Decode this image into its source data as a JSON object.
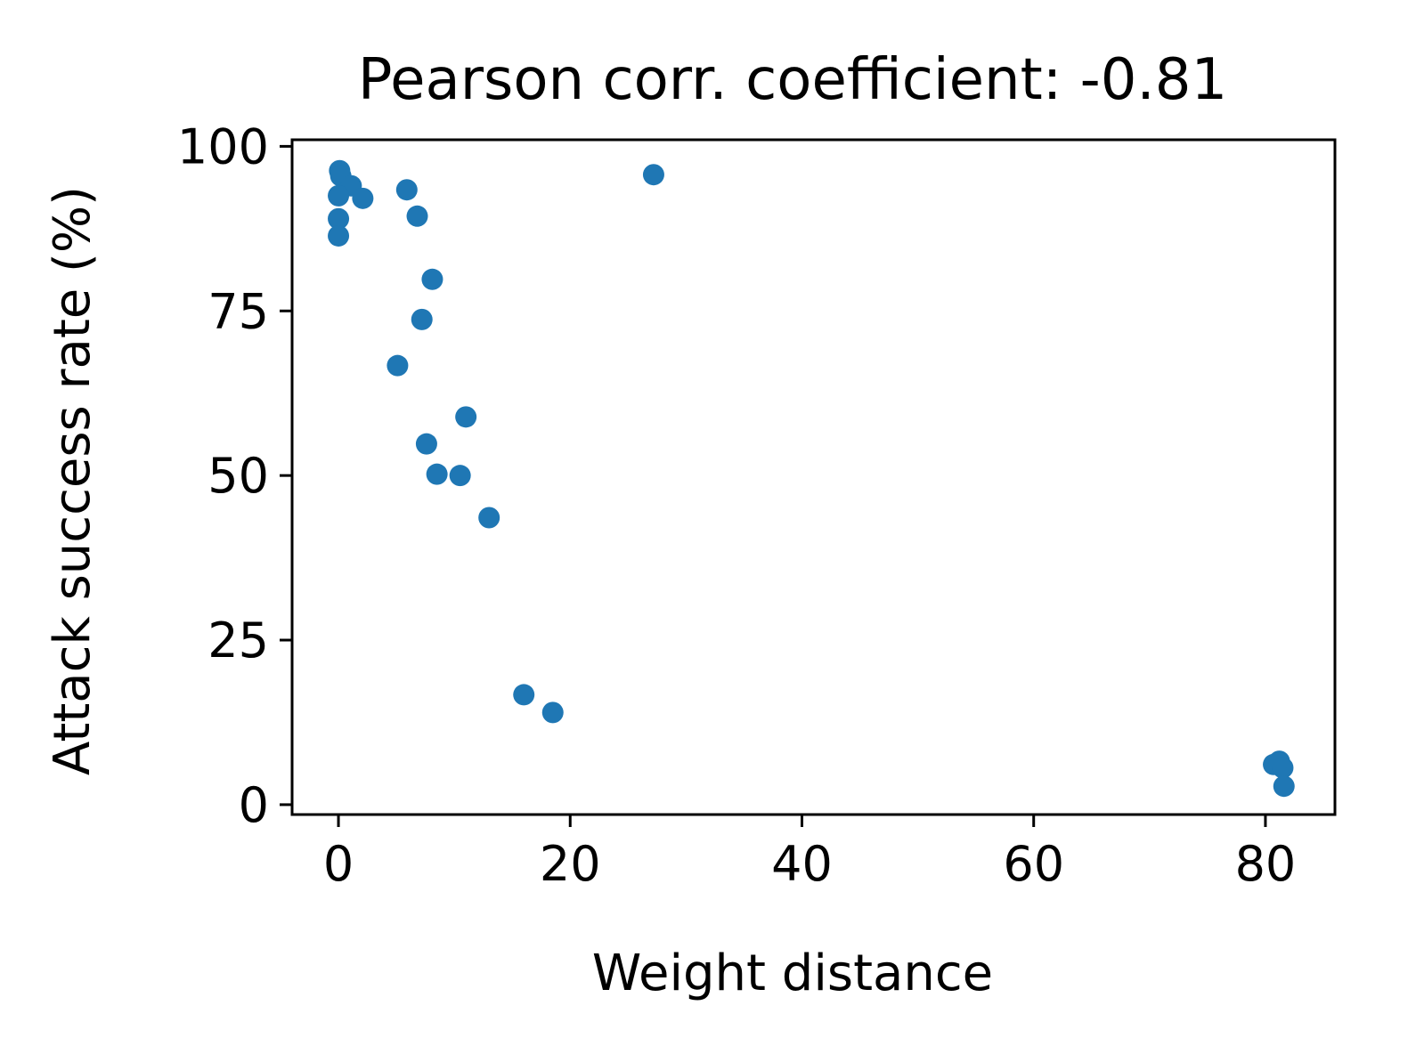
{
  "chart_data": {
    "type": "scatter",
    "title": "Pearson corr. coefficient: -0.81",
    "xlabel": "Weight distance",
    "ylabel": "Attack success rate (%)",
    "xlim": [
      -4,
      86
    ],
    "ylim": [
      -1.5,
      101
    ],
    "xticks": [
      0,
      20,
      40,
      60,
      80
    ],
    "yticks": [
      0,
      25,
      50,
      75,
      100
    ],
    "grid": false,
    "legend": "none",
    "marker_color": "#1f77b4",
    "series": [
      {
        "points": [
          {
            "x": 0.1,
            "y": 96.3
          },
          {
            "x": 0.2,
            "y": 95.5
          },
          {
            "x": 1.1,
            "y": 94.0
          },
          {
            "x": 0.0,
            "y": 92.5
          },
          {
            "x": 2.1,
            "y": 92.1
          },
          {
            "x": 0.0,
            "y": 89.0
          },
          {
            "x": 0.0,
            "y": 86.4
          },
          {
            "x": 5.9,
            "y": 93.4
          },
          {
            "x": 6.8,
            "y": 89.4
          },
          {
            "x": 27.2,
            "y": 95.7
          },
          {
            "x": 8.1,
            "y": 79.8
          },
          {
            "x": 7.2,
            "y": 73.7
          },
          {
            "x": 5.1,
            "y": 66.7
          },
          {
            "x": 11.0,
            "y": 58.9
          },
          {
            "x": 7.6,
            "y": 54.8
          },
          {
            "x": 8.5,
            "y": 50.2
          },
          {
            "x": 10.5,
            "y": 50.0
          },
          {
            "x": 13.0,
            "y": 43.6
          },
          {
            "x": 16.0,
            "y": 16.7
          },
          {
            "x": 18.5,
            "y": 14.0
          },
          {
            "x": 80.7,
            "y": 6.1
          },
          {
            "x": 81.2,
            "y": 6.6
          },
          {
            "x": 81.5,
            "y": 5.6
          },
          {
            "x": 81.6,
            "y": 2.8
          }
        ]
      }
    ]
  }
}
